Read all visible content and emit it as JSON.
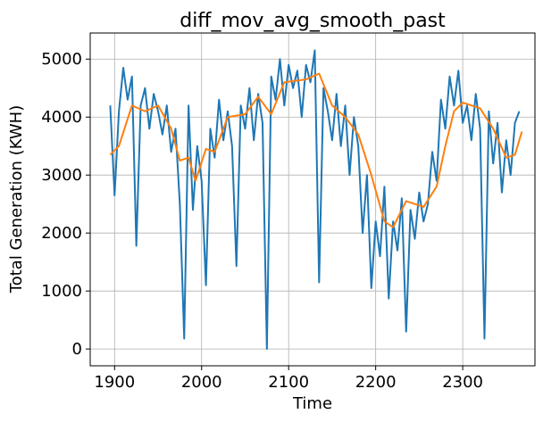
{
  "chart_data": {
    "type": "line",
    "title": "diff_mov_avg_smooth_past",
    "xlabel": "Time",
    "ylabel": "Total Generation (KWH)",
    "xlim": [
      1872,
      2383
    ],
    "ylim": [
      -290,
      5450
    ],
    "xticks": [
      1900,
      2000,
      2100,
      2200,
      2300
    ],
    "yticks": [
      0,
      1000,
      2000,
      3000,
      4000,
      5000
    ],
    "grid": true,
    "series": [
      {
        "color": "#1f77b4",
        "x": [
          1895,
          1900,
          1905,
          1910,
          1915,
          1920,
          1925,
          1930,
          1935,
          1940,
          1945,
          1950,
          1955,
          1960,
          1965,
          1970,
          1975,
          1980,
          1985,
          1990,
          1995,
          2000,
          2005,
          2010,
          2015,
          2020,
          2025,
          2030,
          2035,
          2040,
          2045,
          2050,
          2055,
          2060,
          2065,
          2070,
          2075,
          2080,
          2085,
          2090,
          2095,
          2100,
          2105,
          2110,
          2115,
          2120,
          2125,
          2130,
          2135,
          2140,
          2145,
          2150,
          2155,
          2160,
          2165,
          2170,
          2175,
          2180,
          2185,
          2190,
          2195,
          2200,
          2205,
          2210,
          2215,
          2220,
          2225,
          2230,
          2235,
          2240,
          2245,
          2250,
          2255,
          2260,
          2265,
          2270,
          2275,
          2280,
          2285,
          2290,
          2295,
          2300,
          2305,
          2310,
          2315,
          2320,
          2325,
          2330,
          2335,
          2340,
          2345,
          2350,
          2355,
          2360,
          2365
        ],
        "values": [
          4200,
          2650,
          4100,
          4850,
          4300,
          4700,
          1780,
          4200,
          4500,
          3800,
          4400,
          4100,
          3700,
          4200,
          3400,
          3800,
          2500,
          180,
          4200,
          2400,
          3500,
          2900,
          1100,
          3800,
          3300,
          4300,
          3600,
          4100,
          3500,
          1430,
          4200,
          3800,
          4500,
          3600,
          4400,
          3900,
          0,
          4700,
          4300,
          5000,
          4200,
          4900,
          4500,
          4800,
          4000,
          4900,
          4600,
          5150,
          1150,
          4500,
          4100,
          3600,
          4400,
          3500,
          4200,
          3000,
          4000,
          3500,
          2000,
          3000,
          1050,
          2200,
          1600,
          2800,
          870,
          2200,
          1700,
          2600,
          300,
          2400,
          1900,
          2700,
          2200,
          2500,
          3400,
          2900,
          4300,
          3800,
          4700,
          4200,
          4800,
          3900,
          4200,
          3600,
          4400,
          3800,
          180,
          4100,
          3200,
          3900,
          2700,
          3600,
          3000,
          3900,
          4100
        ]
      },
      {
        "color": "#ff7f0e",
        "x": [
          1895,
          1905,
          1920,
          1935,
          1950,
          1965,
          1975,
          1985,
          1993,
          2005,
          2015,
          2030,
          2050,
          2065,
          2080,
          2095,
          2120,
          2135,
          2150,
          2165,
          2180,
          2195,
          2210,
          2220,
          2235,
          2255,
          2270,
          2280,
          2290,
          2300,
          2320,
          2335,
          2350,
          2360,
          2368
        ],
        "values": [
          3350,
          3500,
          4200,
          4100,
          4200,
          3800,
          3250,
          3300,
          2900,
          3450,
          3400,
          4000,
          4050,
          4350,
          4050,
          4600,
          4650,
          4750,
          4200,
          4000,
          3700,
          3000,
          2200,
          2100,
          2550,
          2450,
          2800,
          3500,
          4100,
          4250,
          4150,
          3800,
          3300,
          3350,
          3750
        ]
      }
    ]
  }
}
